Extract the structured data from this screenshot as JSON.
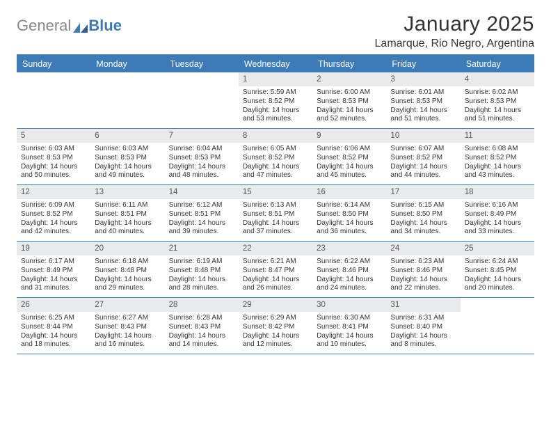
{
  "brand": {
    "part1": "General",
    "part2": "Blue"
  },
  "title": "January 2025",
  "location": "Lamarque, Rio Negro, Argentina",
  "colors": {
    "accent": "#3d7ab8",
    "dayhead_bg": "#e9eaeb",
    "text": "#333"
  },
  "day_names": [
    "Sunday",
    "Monday",
    "Tuesday",
    "Wednesday",
    "Thursday",
    "Friday",
    "Saturday"
  ],
  "weeks": [
    [
      {
        "n": "",
        "sr": "",
        "ss": "",
        "dl": ""
      },
      {
        "n": "",
        "sr": "",
        "ss": "",
        "dl": ""
      },
      {
        "n": "",
        "sr": "",
        "ss": "",
        "dl": ""
      },
      {
        "n": "1",
        "sr": "5:59 AM",
        "ss": "8:52 PM",
        "dl": "14 hours and 53 minutes."
      },
      {
        "n": "2",
        "sr": "6:00 AM",
        "ss": "8:53 PM",
        "dl": "14 hours and 52 minutes."
      },
      {
        "n": "3",
        "sr": "6:01 AM",
        "ss": "8:53 PM",
        "dl": "14 hours and 51 minutes."
      },
      {
        "n": "4",
        "sr": "6:02 AM",
        "ss": "8:53 PM",
        "dl": "14 hours and 51 minutes."
      }
    ],
    [
      {
        "n": "5",
        "sr": "6:03 AM",
        "ss": "8:53 PM",
        "dl": "14 hours and 50 minutes."
      },
      {
        "n": "6",
        "sr": "6:03 AM",
        "ss": "8:53 PM",
        "dl": "14 hours and 49 minutes."
      },
      {
        "n": "7",
        "sr": "6:04 AM",
        "ss": "8:53 PM",
        "dl": "14 hours and 48 minutes."
      },
      {
        "n": "8",
        "sr": "6:05 AM",
        "ss": "8:52 PM",
        "dl": "14 hours and 47 minutes."
      },
      {
        "n": "9",
        "sr": "6:06 AM",
        "ss": "8:52 PM",
        "dl": "14 hours and 45 minutes."
      },
      {
        "n": "10",
        "sr": "6:07 AM",
        "ss": "8:52 PM",
        "dl": "14 hours and 44 minutes."
      },
      {
        "n": "11",
        "sr": "6:08 AM",
        "ss": "8:52 PM",
        "dl": "14 hours and 43 minutes."
      }
    ],
    [
      {
        "n": "12",
        "sr": "6:09 AM",
        "ss": "8:52 PM",
        "dl": "14 hours and 42 minutes."
      },
      {
        "n": "13",
        "sr": "6:11 AM",
        "ss": "8:51 PM",
        "dl": "14 hours and 40 minutes."
      },
      {
        "n": "14",
        "sr": "6:12 AM",
        "ss": "8:51 PM",
        "dl": "14 hours and 39 minutes."
      },
      {
        "n": "15",
        "sr": "6:13 AM",
        "ss": "8:51 PM",
        "dl": "14 hours and 37 minutes."
      },
      {
        "n": "16",
        "sr": "6:14 AM",
        "ss": "8:50 PM",
        "dl": "14 hours and 36 minutes."
      },
      {
        "n": "17",
        "sr": "6:15 AM",
        "ss": "8:50 PM",
        "dl": "14 hours and 34 minutes."
      },
      {
        "n": "18",
        "sr": "6:16 AM",
        "ss": "8:49 PM",
        "dl": "14 hours and 33 minutes."
      }
    ],
    [
      {
        "n": "19",
        "sr": "6:17 AM",
        "ss": "8:49 PM",
        "dl": "14 hours and 31 minutes."
      },
      {
        "n": "20",
        "sr": "6:18 AM",
        "ss": "8:48 PM",
        "dl": "14 hours and 29 minutes."
      },
      {
        "n": "21",
        "sr": "6:19 AM",
        "ss": "8:48 PM",
        "dl": "14 hours and 28 minutes."
      },
      {
        "n": "22",
        "sr": "6:21 AM",
        "ss": "8:47 PM",
        "dl": "14 hours and 26 minutes."
      },
      {
        "n": "23",
        "sr": "6:22 AM",
        "ss": "8:46 PM",
        "dl": "14 hours and 24 minutes."
      },
      {
        "n": "24",
        "sr": "6:23 AM",
        "ss": "8:46 PM",
        "dl": "14 hours and 22 minutes."
      },
      {
        "n": "25",
        "sr": "6:24 AM",
        "ss": "8:45 PM",
        "dl": "14 hours and 20 minutes."
      }
    ],
    [
      {
        "n": "26",
        "sr": "6:25 AM",
        "ss": "8:44 PM",
        "dl": "14 hours and 18 minutes."
      },
      {
        "n": "27",
        "sr": "6:27 AM",
        "ss": "8:43 PM",
        "dl": "14 hours and 16 minutes."
      },
      {
        "n": "28",
        "sr": "6:28 AM",
        "ss": "8:43 PM",
        "dl": "14 hours and 14 minutes."
      },
      {
        "n": "29",
        "sr": "6:29 AM",
        "ss": "8:42 PM",
        "dl": "14 hours and 12 minutes."
      },
      {
        "n": "30",
        "sr": "6:30 AM",
        "ss": "8:41 PM",
        "dl": "14 hours and 10 minutes."
      },
      {
        "n": "31",
        "sr": "6:31 AM",
        "ss": "8:40 PM",
        "dl": "14 hours and 8 minutes."
      },
      {
        "n": "",
        "sr": "",
        "ss": "",
        "dl": ""
      }
    ]
  ],
  "labels": {
    "sunrise": "Sunrise:",
    "sunset": "Sunset:",
    "daylight": "Daylight:"
  }
}
